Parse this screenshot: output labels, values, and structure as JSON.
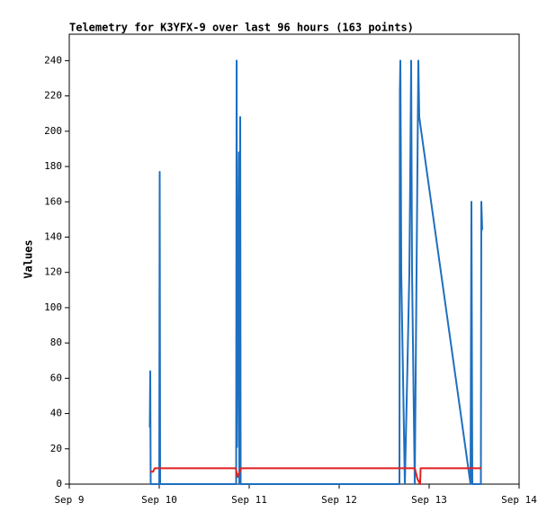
{
  "chart_data": {
    "type": "line",
    "title": "Telemetry for K3YFX-9 over last 96 hours (163 points)",
    "y_label": "Values",
    "xlim": [
      9,
      14
    ],
    "xticks": [
      {
        "value": 9,
        "label": "Sep 9"
      },
      {
        "value": 10,
        "label": "Sep 10"
      },
      {
        "value": 11,
        "label": "Sep 11"
      },
      {
        "value": 12,
        "label": "Sep 12"
      },
      {
        "value": 13,
        "label": "Sep 13"
      },
      {
        "value": 14,
        "label": "Sep 14"
      }
    ],
    "ylim": [
      0,
      255
    ],
    "yticks": [
      0,
      20,
      40,
      60,
      80,
      100,
      120,
      140,
      160,
      180,
      200,
      220,
      240
    ],
    "grid": false,
    "series": [
      {
        "color": "#1f6fbf",
        "x": [
          9.895,
          9.9,
          9.905,
          10.0,
          10.005,
          10.01,
          10.855,
          10.86,
          10.865,
          10.87,
          10.875,
          10.88,
          10.885,
          10.89,
          10.9,
          10.905,
          12.67,
          12.675,
          12.68,
          12.685,
          12.69,
          12.7,
          12.73,
          12.76,
          12.78,
          12.79,
          12.8,
          12.81,
          12.84,
          12.88,
          12.89,
          13.46,
          13.47,
          13.48,
          13.575,
          13.58,
          13.59
        ],
        "values": [
          32,
          64,
          0,
          0,
          177,
          0,
          0,
          240,
          21,
          63,
          104,
          146,
          188,
          0,
          208,
          0,
          0,
          224,
          240,
          190,
          120,
          90,
          0,
          70,
          120,
          176,
          240,
          120,
          0,
          240,
          208,
          0,
          160,
          0,
          0,
          160,
          144
        ]
      },
      {
        "color": "#e02020",
        "x": [
          9.9,
          9.93,
          9.95,
          10.85,
          10.87,
          10.91,
          12.84,
          12.87,
          12.9,
          12.905,
          13.58
        ],
        "values": [
          7,
          7,
          9,
          9,
          4,
          9,
          9,
          3,
          0,
          9,
          9
        ]
      }
    ]
  }
}
